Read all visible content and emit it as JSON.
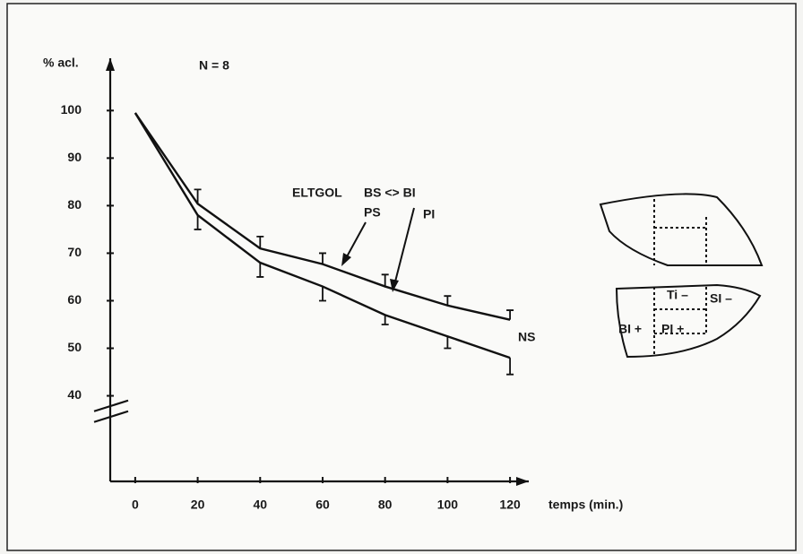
{
  "chart_data": {
    "type": "line",
    "y_label": "% acl.",
    "x_label": "temps (min.)",
    "x": [
      0,
      20,
      40,
      60,
      80,
      100,
      120
    ],
    "series": [
      {
        "name": "ELTGOL",
        "color": "#111111",
        "values": [
          99.5,
          80.4,
          71,
          67.7,
          63,
          59,
          56
        ],
        "errors": [
          0,
          3,
          2.5,
          2.3,
          2.5,
          2,
          2
        ],
        "error_side": "up"
      },
      {
        "name": "NS",
        "color": "#111111",
        "values": [
          99.5,
          78,
          68,
          63,
          57,
          52.5,
          48
        ],
        "errors": [
          0,
          3,
          3,
          3,
          2,
          2.5,
          3.5
        ],
        "error_side": "down"
      }
    ],
    "annotations": [
      "N = 8",
      "BS <> BI",
      "PS",
      "PI"
    ],
    "xlim": [
      -8,
      126
    ],
    "xticks": [
      0,
      20,
      40,
      60,
      80,
      100,
      120
    ],
    "ylim": [
      22,
      111
    ],
    "yticks": [
      40,
      50,
      60,
      70,
      80,
      90,
      100
    ],
    "axis_break": 36,
    "grid": false
  },
  "diagram": {
    "labels": [
      "Ti –",
      "SI –",
      "BI +",
      "PI +"
    ]
  }
}
